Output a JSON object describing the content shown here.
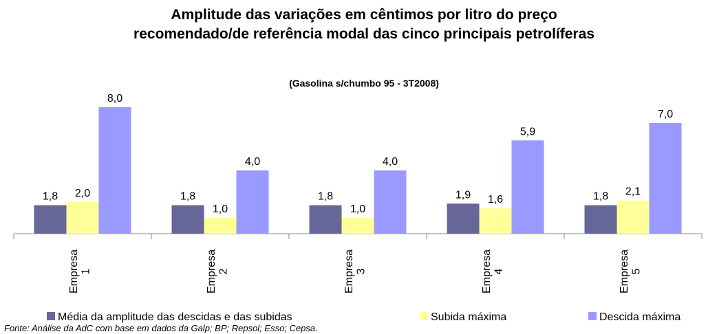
{
  "chart_data": {
    "type": "bar",
    "title": "Amplitude das variações em cêntimos por litro do preço recomendado/de referência modal das cinco principais petrolíferas",
    "subtitle": "(Gasolina s/chumbo 95 - 3T2008)",
    "categories": [
      "Empresa 1",
      "Empresa 2",
      "Empresa 3",
      "Empresa 4",
      "Empresa 5"
    ],
    "series": [
      {
        "name": "Média da amplitude das descidas e das subidas",
        "color": "#666699",
        "values": [
          1.8,
          1.8,
          1.8,
          1.9,
          1.8
        ],
        "value_labels": [
          "1,8",
          "1,8",
          "1,8",
          "1,9",
          "1,8"
        ]
      },
      {
        "name": "Subida máxima",
        "color": "#ffff99",
        "values": [
          2.0,
          1.0,
          1.0,
          1.6,
          2.1
        ],
        "value_labels": [
          "2,0",
          "1,0",
          "1,0",
          "1,6",
          "2,1"
        ]
      },
      {
        "name": "Descida máxima",
        "color": "#9999ff",
        "values": [
          8.0,
          4.0,
          4.0,
          5.9,
          7.0
        ],
        "value_labels": [
          "8,0",
          "4,0",
          "4,0",
          "5,9",
          "7,0"
        ]
      }
    ],
    "ylim": [
      0,
      8
    ],
    "source": "Fonte: Análise da AdC com base em dados da Galp; BP; Repsol; Esso; Cepsa."
  }
}
